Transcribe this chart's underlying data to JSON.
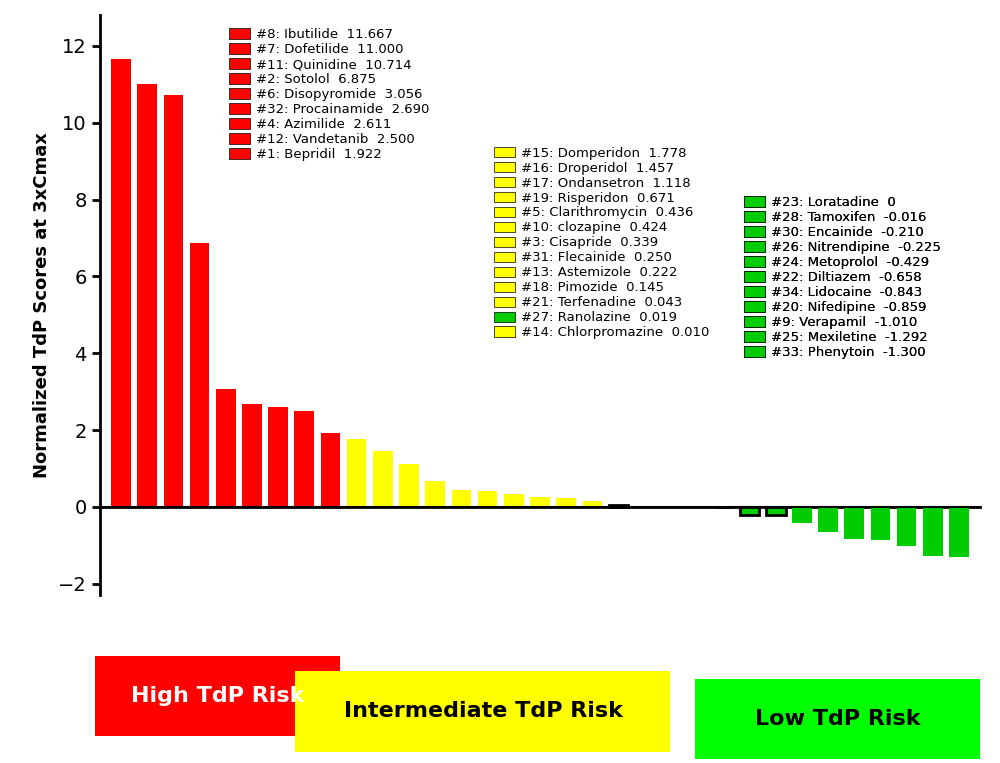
{
  "drugs": [
    {
      "name": "Ibutilide",
      "num": 8,
      "value": 11.667,
      "color": "#FF0000",
      "risk": "high"
    },
    {
      "name": "Dofetilide",
      "num": 7,
      "value": 11.0,
      "color": "#FF0000",
      "risk": "high"
    },
    {
      "name": "Quinidine",
      "num": 11,
      "value": 10.714,
      "color": "#FF0000",
      "risk": "high"
    },
    {
      "name": "Sotolol",
      "num": 2,
      "value": 6.875,
      "color": "#FF0000",
      "risk": "high"
    },
    {
      "name": "Disopyromide",
      "num": 6,
      "value": 3.056,
      "color": "#FF0000",
      "risk": "high"
    },
    {
      "name": "Procainamide",
      "num": 32,
      "value": 2.69,
      "color": "#FF0000",
      "risk": "high"
    },
    {
      "name": "Azimilide",
      "num": 4,
      "value": 2.611,
      "color": "#FF0000",
      "risk": "high"
    },
    {
      "name": "Vandetanib",
      "num": 12,
      "value": 2.5,
      "color": "#FF0000",
      "risk": "high"
    },
    {
      "name": "Bepridil",
      "num": 1,
      "value": 1.922,
      "color": "#FF0000",
      "risk": "high"
    },
    {
      "name": "Domperidon",
      "num": 15,
      "value": 1.778,
      "color": "#FFFF00",
      "risk": "intermediate"
    },
    {
      "name": "Droperidol",
      "num": 16,
      "value": 1.457,
      "color": "#FFFF00",
      "risk": "intermediate"
    },
    {
      "name": "Ondansetron",
      "num": 17,
      "value": 1.118,
      "color": "#FFFF00",
      "risk": "intermediate"
    },
    {
      "name": "Risperidon",
      "num": 19,
      "value": 0.671,
      "color": "#FFFF00",
      "risk": "intermediate"
    },
    {
      "name": "Clarithromycin",
      "num": 5,
      "value": 0.436,
      "color": "#FFFF00",
      "risk": "intermediate"
    },
    {
      "name": "clozapine",
      "num": 10,
      "value": 0.424,
      "color": "#FFFF00",
      "risk": "intermediate"
    },
    {
      "name": "Cisapride",
      "num": 3,
      "value": 0.339,
      "color": "#FFFF00",
      "risk": "intermediate"
    },
    {
      "name": "Flecainide",
      "num": 31,
      "value": 0.25,
      "color": "#FFFF00",
      "risk": "intermediate"
    },
    {
      "name": "Astemizole",
      "num": 13,
      "value": 0.222,
      "color": "#FFFF00",
      "risk": "intermediate"
    },
    {
      "name": "Pimozide",
      "num": 18,
      "value": 0.145,
      "color": "#FFFF00",
      "risk": "intermediate"
    },
    {
      "name": "Terfenadine",
      "num": 21,
      "value": 0.043,
      "color": "#FFFF00",
      "risk": "intermediate",
      "box": true
    },
    {
      "name": "Ranolazine",
      "num": 27,
      "value": 0.019,
      "color": "#00CC00",
      "risk": "intermediate_green"
    },
    {
      "name": "Chlorpromazine",
      "num": 14,
      "value": 0.01,
      "color": "#FFFF00",
      "risk": "intermediate"
    },
    {
      "name": "Loratadine",
      "num": 23,
      "value": 0.0,
      "color": "#00CC00",
      "risk": "low"
    },
    {
      "name": "Tamoxifen",
      "num": 28,
      "value": -0.016,
      "color": "#00CC00",
      "risk": "low",
      "box": true
    },
    {
      "name": "Encainide",
      "num": 30,
      "value": -0.21,
      "color": "#00CC00",
      "risk": "low",
      "box": true
    },
    {
      "name": "Nitrendipine",
      "num": 26,
      "value": -0.225,
      "color": "#00CC00",
      "risk": "low",
      "box": true
    },
    {
      "name": "Metoprolol",
      "num": 24,
      "value": -0.429,
      "color": "#00CC00",
      "risk": "low"
    },
    {
      "name": "Diltiazem",
      "num": 22,
      "value": -0.658,
      "color": "#00CC00",
      "risk": "low"
    },
    {
      "name": "Lidocaine",
      "num": 34,
      "value": -0.843,
      "color": "#00CC00",
      "risk": "low"
    },
    {
      "name": "Nifedipine",
      "num": 20,
      "value": -0.859,
      "color": "#00CC00",
      "risk": "low"
    },
    {
      "name": "Verapamil",
      "num": 9,
      "value": -1.01,
      "color": "#00CC00",
      "risk": "low"
    },
    {
      "name": "Mexiletine",
      "num": 25,
      "value": -1.292,
      "color": "#00CC00",
      "risk": "low"
    },
    {
      "name": "Phenytoin",
      "num": 33,
      "value": -1.3,
      "color": "#00CC00",
      "risk": "low"
    }
  ],
  "ylabel": "Normalized TdP Scores at 3xCmax",
  "ylim": [
    -2.3,
    12.8
  ],
  "yticks": [
    -2,
    0,
    2,
    4,
    6,
    8,
    10,
    12
  ],
  "bg_color": "#FFFFFF",
  "legend_high": [
    {
      "label": "#8: Ibutilide  11.667",
      "color": "#FF0000"
    },
    {
      "label": "#7: Dofetilide  11.000",
      "color": "#FF0000"
    },
    {
      "label": "#11: Quinidine  10.714",
      "color": "#FF0000"
    },
    {
      "label": "#2: Sotolol  6.875",
      "color": "#FF0000"
    },
    {
      "label": "#6: Disopyromide  3.056",
      "color": "#FF0000"
    },
    {
      "label": "#32: Procainamide  2.690",
      "color": "#FF0000"
    },
    {
      "label": "#4: Azimilide  2.611",
      "color": "#FF0000"
    },
    {
      "label": "#12: Vandetanib  2.500",
      "color": "#FF0000"
    },
    {
      "label": "#1: Bepridil  1.922",
      "color": "#FF0000"
    }
  ],
  "legend_int": [
    {
      "label": "#15: Domperidon  1.778",
      "color": "#FFFF00"
    },
    {
      "label": "#16: Droperidol  1.457",
      "color": "#FFFF00"
    },
    {
      "label": "#17: Ondansetron  1.118",
      "color": "#FFFF00"
    },
    {
      "label": "#19: Risperidon  0.671",
      "color": "#FFFF00"
    },
    {
      "label": "#5: Clarithromycin  0.436",
      "color": "#FFFF00"
    },
    {
      "label": "#10: clozapine  0.424",
      "color": "#FFFF00"
    },
    {
      "label": "#3: Cisapride  0.339",
      "color": "#FFFF00"
    },
    {
      "label": "#31: Flecainide  0.250",
      "color": "#FFFF00"
    },
    {
      "label": "#13: Astemizole  0.222",
      "color": "#FFFF00"
    },
    {
      "label": "#18: Pimozide  0.145",
      "color": "#FFFF00"
    },
    {
      "label": "#21: Terfenadine  0.043",
      "color": "#FFFF00",
      "box": true
    },
    {
      "label": "#27: Ranolazine  0.019",
      "color": "#00CC00"
    },
    {
      "label": "#14: Chlorpromazine  0.010",
      "color": "#FFFF00"
    }
  ],
  "legend_low": [
    {
      "label": "#23: Loratadine  0",
      "color": "#00CC00"
    },
    {
      "label": "#28: Tamoxifen  -0.016",
      "color": "#00CC00",
      "box": true
    },
    {
      "label": "#30: Encainide  -0.210",
      "color": "#00CC00",
      "box": true
    },
    {
      "label": "#26: Nitrendipine  -0.225",
      "color": "#00CC00",
      "box": true
    },
    {
      "label": "#24: Metoprolol  -0.429",
      "color": "#00CC00"
    },
    {
      "label": "#22: Diltiazem  -0.658",
      "color": "#00CC00"
    },
    {
      "label": "#34: Lidocaine  -0.843",
      "color": "#00CC00"
    },
    {
      "label": "#20: Nifedipine  -0.859",
      "color": "#00CC00"
    },
    {
      "label": "#9: Verapamil  -1.010",
      "color": "#00CC00"
    },
    {
      "label": "#25: Mexiletine  -1.292",
      "color": "#00CC00"
    },
    {
      "label": "#33: Phenytoin  -1.300",
      "color": "#00CC00"
    }
  ]
}
